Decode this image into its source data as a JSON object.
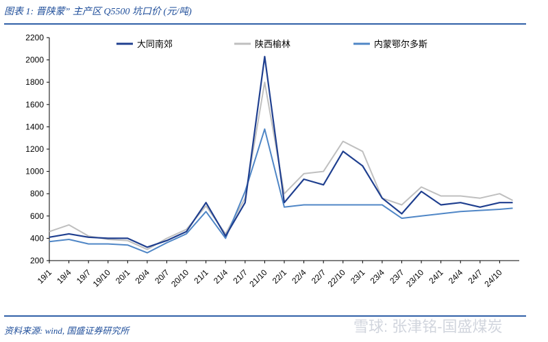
{
  "header": {
    "figure_title": "图表 1:  晋陕蒙” 主产区 Q5500 坑口价 (元/吨)"
  },
  "footer": {
    "source": "资料来源:    wind,  国盛证券研究所",
    "watermark": "雪球: 张津铭-国盛煤炭"
  },
  "chart_data": {
    "type": "line",
    "title": "",
    "xlabel": "",
    "ylabel": "",
    "ylim": [
      200,
      2200
    ],
    "yticks": [
      200,
      400,
      600,
      800,
      1000,
      1200,
      1400,
      1600,
      1800,
      2000,
      2200
    ],
    "xlim": [
      "19/1",
      "24/12"
    ],
    "xtick_labels": [
      "19/1",
      "19/4",
      "19/7",
      "19/10",
      "20/1",
      "20/4",
      "20/7",
      "20/10",
      "21/1",
      "21/4",
      "21/7",
      "21/10",
      "22/1",
      "22/4",
      "22/7",
      "22/10",
      "23/1",
      "23/4",
      "23/7",
      "23/10",
      "24/1",
      "24/4",
      "24/7",
      "24/10"
    ],
    "grid": false,
    "legend_position": "top",
    "x": [
      "19/1",
      "19/4",
      "19/7",
      "19/10",
      "20/1",
      "20/4",
      "20/7",
      "20/10",
      "21/1",
      "21/4",
      "21/7",
      "21/10",
      "22/1",
      "22/4",
      "22/7",
      "22/10",
      "23/1",
      "23/4",
      "23/7",
      "23/10",
      "24/1",
      "24/4",
      "24/7",
      "24/10",
      "24/12"
    ],
    "series": [
      {
        "name": "大同南郊",
        "color": "#1f3f8f",
        "values": [
          410,
          440,
          410,
          400,
          400,
          320,
          380,
          460,
          720,
          420,
          720,
          2030,
          720,
          930,
          880,
          1180,
          1050,
          760,
          620,
          820,
          700,
          720,
          680,
          720,
          720
        ]
      },
      {
        "name": "陕西榆林",
        "color": "#bfbfbf",
        "values": [
          460,
          520,
          420,
          390,
          380,
          300,
          400,
          480,
          690,
          440,
          760,
          1800,
          800,
          980,
          1000,
          1270,
          1180,
          760,
          700,
          860,
          780,
          780,
          760,
          800,
          740
        ]
      },
      {
        "name": "内蒙鄂尔多斯",
        "color": "#4f86c6",
        "values": [
          370,
          390,
          350,
          350,
          340,
          270,
          360,
          440,
          640,
          400,
          820,
          1380,
          680,
          700,
          700,
          700,
          700,
          700,
          580,
          600,
          620,
          640,
          650,
          660,
          670
        ]
      }
    ]
  }
}
